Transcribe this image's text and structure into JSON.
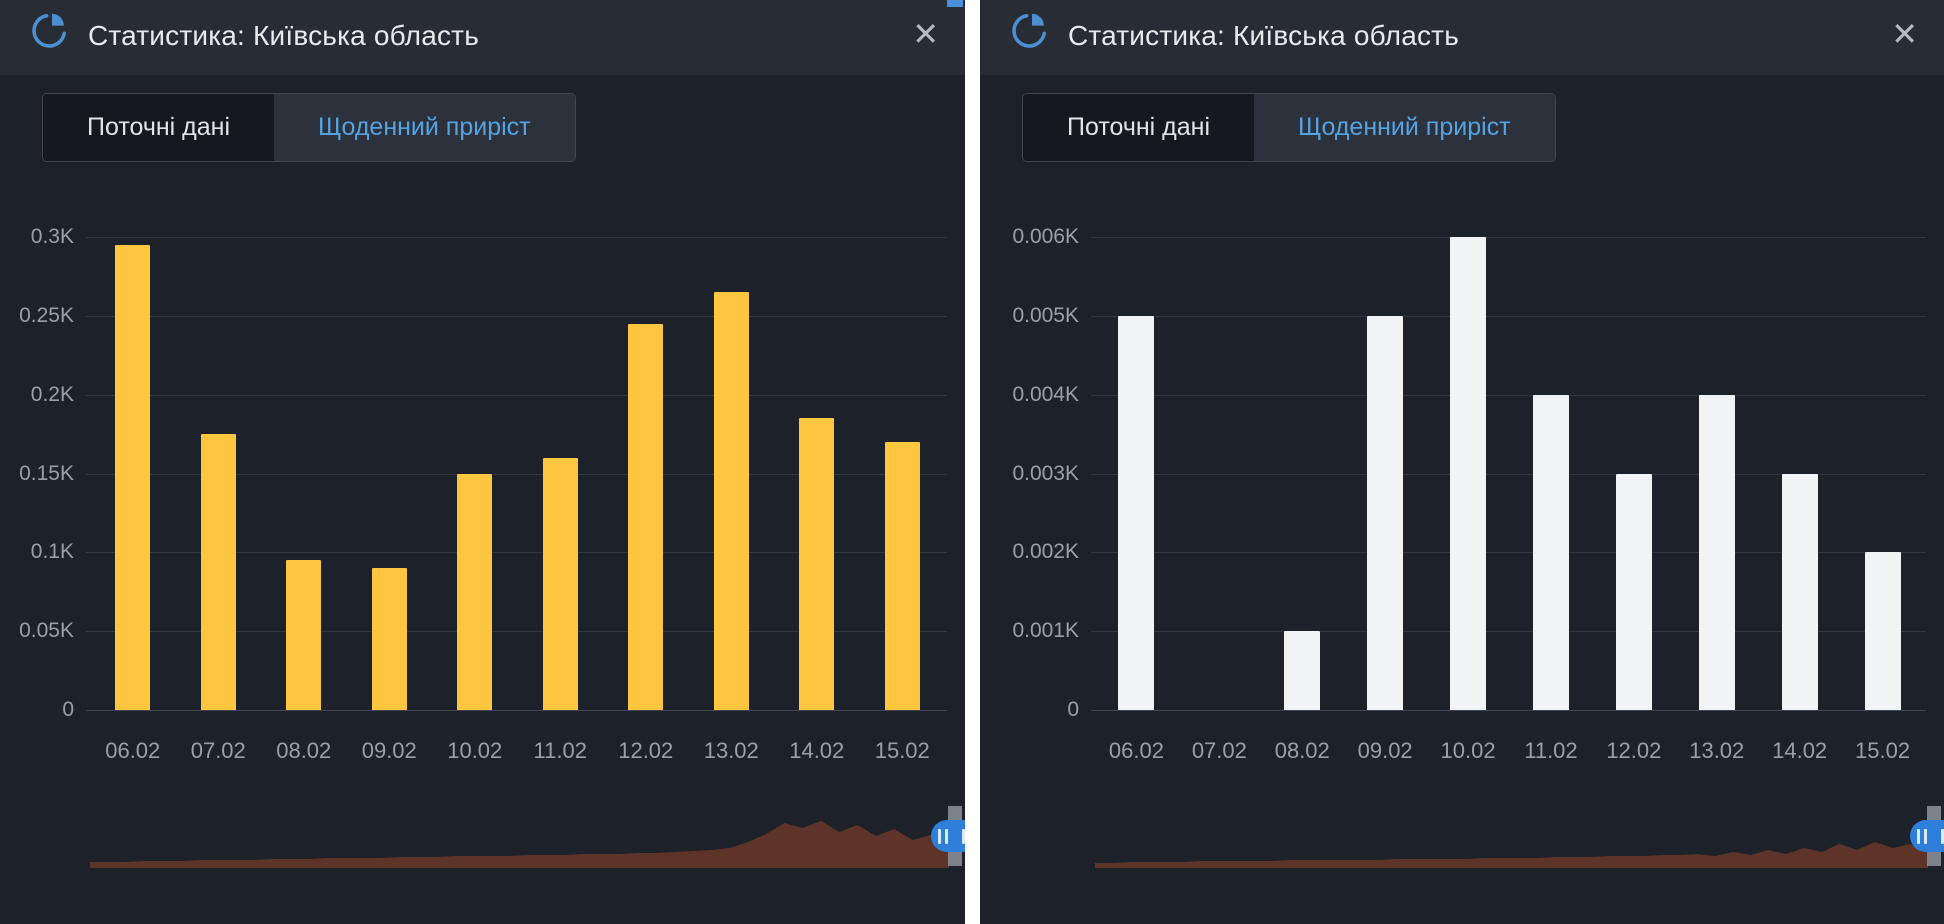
{
  "app": {
    "background": "#1d212a",
    "header_background": "#282c34",
    "divider_color": "#ffffff",
    "accent_blue": "#54a4e4",
    "icon_blue": "#4d8fd3"
  },
  "icons": {
    "header_icon": "pie-chart-icon",
    "close_icon": "✕",
    "handle_icon": "pause-grip-bars"
  },
  "panels": [
    {
      "title": "Статистика: Київська область",
      "close_label": "✕",
      "tabs": [
        {
          "label": "Поточні дані",
          "active": false
        },
        {
          "label": "Щоденний приріст",
          "active": true
        }
      ]
    },
    {
      "title": "Статистика: Київська область",
      "close_label": "✕",
      "tabs": [
        {
          "label": "Поточні дані",
          "active": false
        },
        {
          "label": "Щоденний приріст",
          "active": true
        }
      ]
    }
  ],
  "chart_data": [
    {
      "type": "bar",
      "categories": [
        "06.02",
        "07.02",
        "08.02",
        "09.02",
        "10.02",
        "11.02",
        "12.02",
        "13.02",
        "14.02",
        "15.02"
      ],
      "values": [
        0.295,
        0.175,
        0.095,
        0.09,
        0.15,
        0.16,
        0.245,
        0.265,
        0.185,
        0.17
      ],
      "unit": "K",
      "ylim": [
        0,
        0.3
      ],
      "tick_values": [
        0,
        0.05,
        0.1,
        0.15,
        0.2,
        0.25,
        0.3
      ],
      "tick_labels": [
        "0",
        "0.05K",
        "0.1K",
        "0.15K",
        "0.2K",
        "0.25K",
        "0.3K"
      ],
      "grid": true,
      "legend": false,
      "bar_color": "#fdc63e",
      "timeline_color": "#5e3328",
      "timeline_profile": [
        6,
        6,
        6,
        7,
        7,
        7,
        8,
        8,
        8,
        8,
        9,
        9,
        9,
        10,
        10,
        10,
        10,
        11,
        11,
        11,
        12,
        12,
        12,
        12,
        13,
        13,
        13,
        14,
        14,
        14,
        15,
        15,
        16,
        17,
        18,
        20,
        26,
        34,
        45,
        40,
        47,
        36,
        43,
        32,
        39,
        28,
        33,
        26
      ]
    },
    {
      "type": "bar",
      "categories": [
        "06.02",
        "07.02",
        "08.02",
        "09.02",
        "10.02",
        "11.02",
        "12.02",
        "13.02",
        "14.02",
        "15.02"
      ],
      "values": [
        0.005,
        0,
        0.001,
        0.005,
        0.006,
        0.004,
        0.003,
        0.004,
        0.003,
        0.002
      ],
      "unit": "K",
      "ylim": [
        0,
        0.006
      ],
      "tick_values": [
        0,
        0.001,
        0.002,
        0.003,
        0.004,
        0.005,
        0.006
      ],
      "tick_labels": [
        "0",
        "0.001K",
        "0.002K",
        "0.003K",
        "0.004K",
        "0.005K",
        "0.006K"
      ],
      "grid": true,
      "legend": false,
      "bar_color": "#f2f3f4",
      "timeline_color": "#5e3328",
      "timeline_profile": [
        5,
        5,
        6,
        6,
        6,
        6,
        7,
        7,
        7,
        7,
        7,
        8,
        8,
        8,
        8,
        8,
        8,
        9,
        9,
        9,
        9,
        9,
        10,
        10,
        10,
        10,
        11,
        11,
        11,
        12,
        12,
        12,
        13,
        13,
        14,
        12,
        16,
        13,
        18,
        14,
        20,
        16,
        24,
        18,
        26,
        20,
        24,
        16
      ]
    }
  ]
}
